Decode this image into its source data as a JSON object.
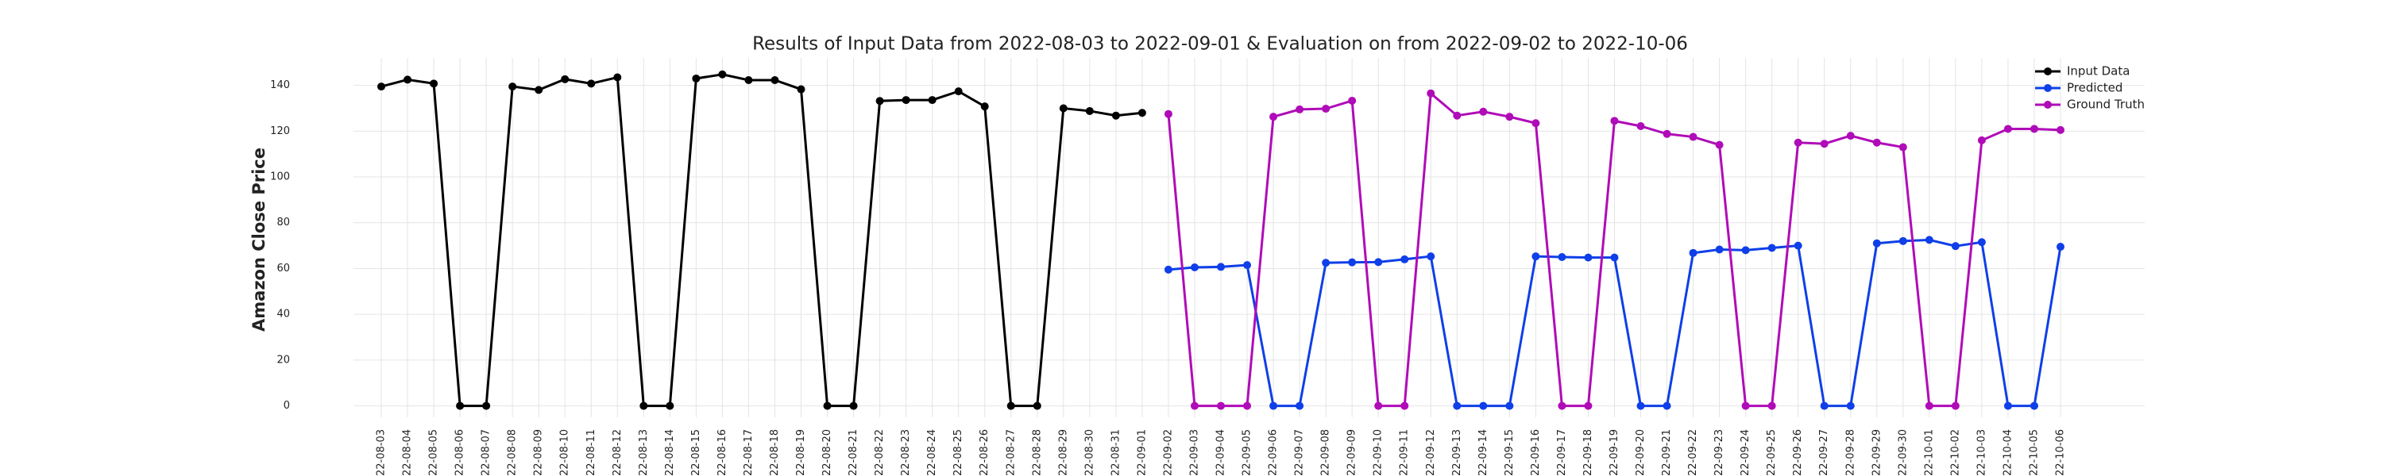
{
  "chart_data": {
    "type": "line",
    "title": "Results of Input Data from 2022-08-03 to 2022-09-01 & Evaluation on from 2022-09-02 to 2022-10-06",
    "ylabel": "Amazon Close Price",
    "categories": [
      "2022-08-03",
      "2022-08-04",
      "2022-08-05",
      "2022-08-06",
      "2022-08-07",
      "2022-08-08",
      "2022-08-09",
      "2022-08-10",
      "2022-08-11",
      "2022-08-12",
      "2022-08-13",
      "2022-08-14",
      "2022-08-15",
      "2022-08-16",
      "2022-08-17",
      "2022-08-18",
      "2022-08-19",
      "2022-08-20",
      "2022-08-21",
      "2022-08-22",
      "2022-08-23",
      "2022-08-24",
      "2022-08-25",
      "2022-08-26",
      "2022-08-27",
      "2022-08-28",
      "2022-08-29",
      "2022-08-30",
      "2022-08-31",
      "2022-09-01",
      "2022-09-02",
      "2022-09-03",
      "2022-09-04",
      "2022-09-05",
      "2022-09-06",
      "2022-09-07",
      "2022-09-08",
      "2022-09-09",
      "2022-09-10",
      "2022-09-11",
      "2022-09-12",
      "2022-09-13",
      "2022-09-14",
      "2022-09-15",
      "2022-09-16",
      "2022-09-17",
      "2022-09-18",
      "2022-09-19",
      "2022-09-20",
      "2022-09-21",
      "2022-09-22",
      "2022-09-23",
      "2022-09-24",
      "2022-09-25",
      "2022-09-26",
      "2022-09-27",
      "2022-09-28",
      "2022-09-29",
      "2022-09-30",
      "2022-10-01",
      "2022-10-02",
      "2022-10-03",
      "2022-10-04",
      "2022-10-05",
      "2022-10-06"
    ],
    "series": [
      {
        "name": "Input Data",
        "color": "#000000",
        "values": [
          139.5,
          142.5,
          140.8,
          0,
          0,
          139.5,
          138,
          142.7,
          140.8,
          143.5,
          0,
          0,
          143,
          144.8,
          142.3,
          142.3,
          138.3,
          0,
          0,
          133.2,
          133.6,
          133.6,
          137.4,
          130.8,
          0,
          0,
          130,
          128.8,
          126.8,
          128,
          null,
          null,
          null,
          null,
          null,
          null,
          null,
          null,
          null,
          null,
          null,
          null,
          null,
          null,
          null,
          null,
          null,
          null,
          null,
          null,
          null,
          null,
          null,
          null,
          null,
          null,
          null,
          null,
          null,
          null,
          null,
          null,
          null,
          null,
          null
        ]
      },
      {
        "name": "Predicted",
        "color": "#0f3fe8",
        "values": [
          null,
          null,
          null,
          null,
          null,
          null,
          null,
          null,
          null,
          null,
          null,
          null,
          null,
          null,
          null,
          null,
          null,
          null,
          null,
          null,
          null,
          null,
          null,
          null,
          null,
          null,
          null,
          null,
          null,
          null,
          59.5,
          60.5,
          60.7,
          61.5,
          0,
          0,
          62.5,
          62.7,
          62.8,
          64,
          65.3,
          0,
          0,
          0,
          65.3,
          65,
          64.8,
          64.8,
          0,
          0,
          66.8,
          68.3,
          68,
          69,
          70,
          0,
          0,
          71,
          72,
          72.5,
          69.8,
          71.5,
          0,
          0,
          69.5
        ]
      },
      {
        "name": "Ground Truth",
        "color": "#b00bb8",
        "values": [
          null,
          null,
          null,
          null,
          null,
          null,
          null,
          null,
          null,
          null,
          null,
          null,
          null,
          null,
          null,
          null,
          null,
          null,
          null,
          null,
          null,
          null,
          null,
          null,
          null,
          null,
          null,
          null,
          null,
          null,
          127.5,
          0,
          0,
          0,
          126.3,
          129.5,
          129.8,
          133.3,
          0,
          0,
          136.5,
          126.8,
          128.5,
          126.3,
          123.5,
          0,
          0,
          124.5,
          122.2,
          118.8,
          117.5,
          114,
          0,
          0,
          115,
          114.5,
          118,
          115,
          113,
          0,
          0,
          116,
          121,
          121,
          120.5
        ]
      }
    ],
    "ylim": [
      -5,
      152
    ],
    "yticks": [
      0,
      20,
      40,
      60,
      80,
      100,
      120,
      140
    ],
    "grid": true,
    "legend": "upper right"
  }
}
